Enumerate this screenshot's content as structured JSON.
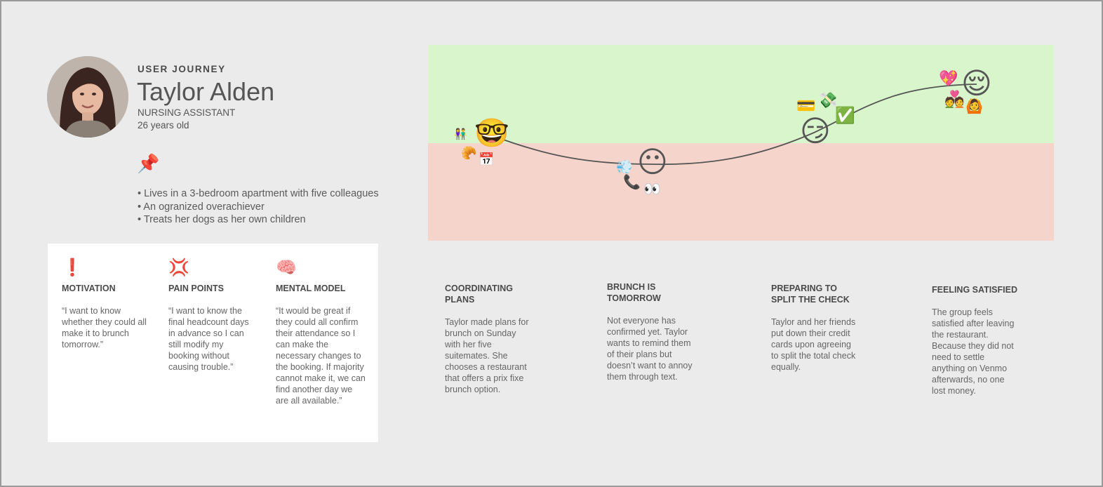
{
  "persona": {
    "eyebrow": "USER JOURNEY",
    "name": "Taylor Alden",
    "role": "NURSING ASSISTANT",
    "age": "26 years old",
    "pin_icon": "📌",
    "facts": [
      "• Lives in a 3-bedroom apartment with five colleagues",
      "• An ogranized overachiever",
      "• Treats her dogs as her own children"
    ]
  },
  "card": {
    "columns": [
      {
        "icon": "❗",
        "heading": "MOTIVATION",
        "quote": "“I want to know whether they could all make it to brunch tomorrow.”"
      },
      {
        "icon": "💢",
        "heading": "PAIN POINTS",
        "quote": "“I want to know the final headcount days in advance so I can still modify my booking without causing trouble.”"
      },
      {
        "icon": "🧠",
        "heading": "MENTAL MODEL",
        "quote": "“It would be great if they could all confirm their attendance so I can make the necessary changes to the booking. If majority cannot make it, we can find another day we are all available.”"
      }
    ]
  },
  "chart_data": {
    "type": "line",
    "categories": [
      "COORDINATING PLANS",
      "BRUNCH IS TOMORROW",
      "PREPARING TO SPLIT THE CHECK",
      "FEELING SATISFIED"
    ],
    "colors": {
      "positive_zone": "#d9f5cc",
      "negative_zone": "#f4d4cb",
      "line": "#555555"
    },
    "faces": [
      "🤓",
      "😶",
      "😏",
      "😌"
    ],
    "decorations": [
      [
        "👫",
        "🥐",
        "📅"
      ],
      [
        "💨",
        "📞",
        "👀"
      ],
      [
        "💳",
        "💸",
        "✅"
      ],
      [
        "💖",
        "💑",
        "🙆"
      ]
    ]
  },
  "stages": [
    {
      "title": "COORDINATING PLANS",
      "desc": "Taylor made plans for brunch on Sunday with her five suitemates. She chooses a restaurant that offers a prix fixe brunch option."
    },
    {
      "title": "BRUNCH IS TOMORROW",
      "desc": "Not everyone has confirmed yet. Taylor wants to remind them of their plans but doesn’t want to annoy them through text."
    },
    {
      "title": "PREPARING TO SPLIT THE CHECK",
      "desc": "Taylor and her friends put down their credit cards upon agreeing to split the total check equally."
    },
    {
      "title": "FEELING SATISFIED",
      "desc": "The group feels satisfied after leaving the restaurant. Because they did not need to settle anything on Venmo afterwards, no one lost money."
    }
  ]
}
